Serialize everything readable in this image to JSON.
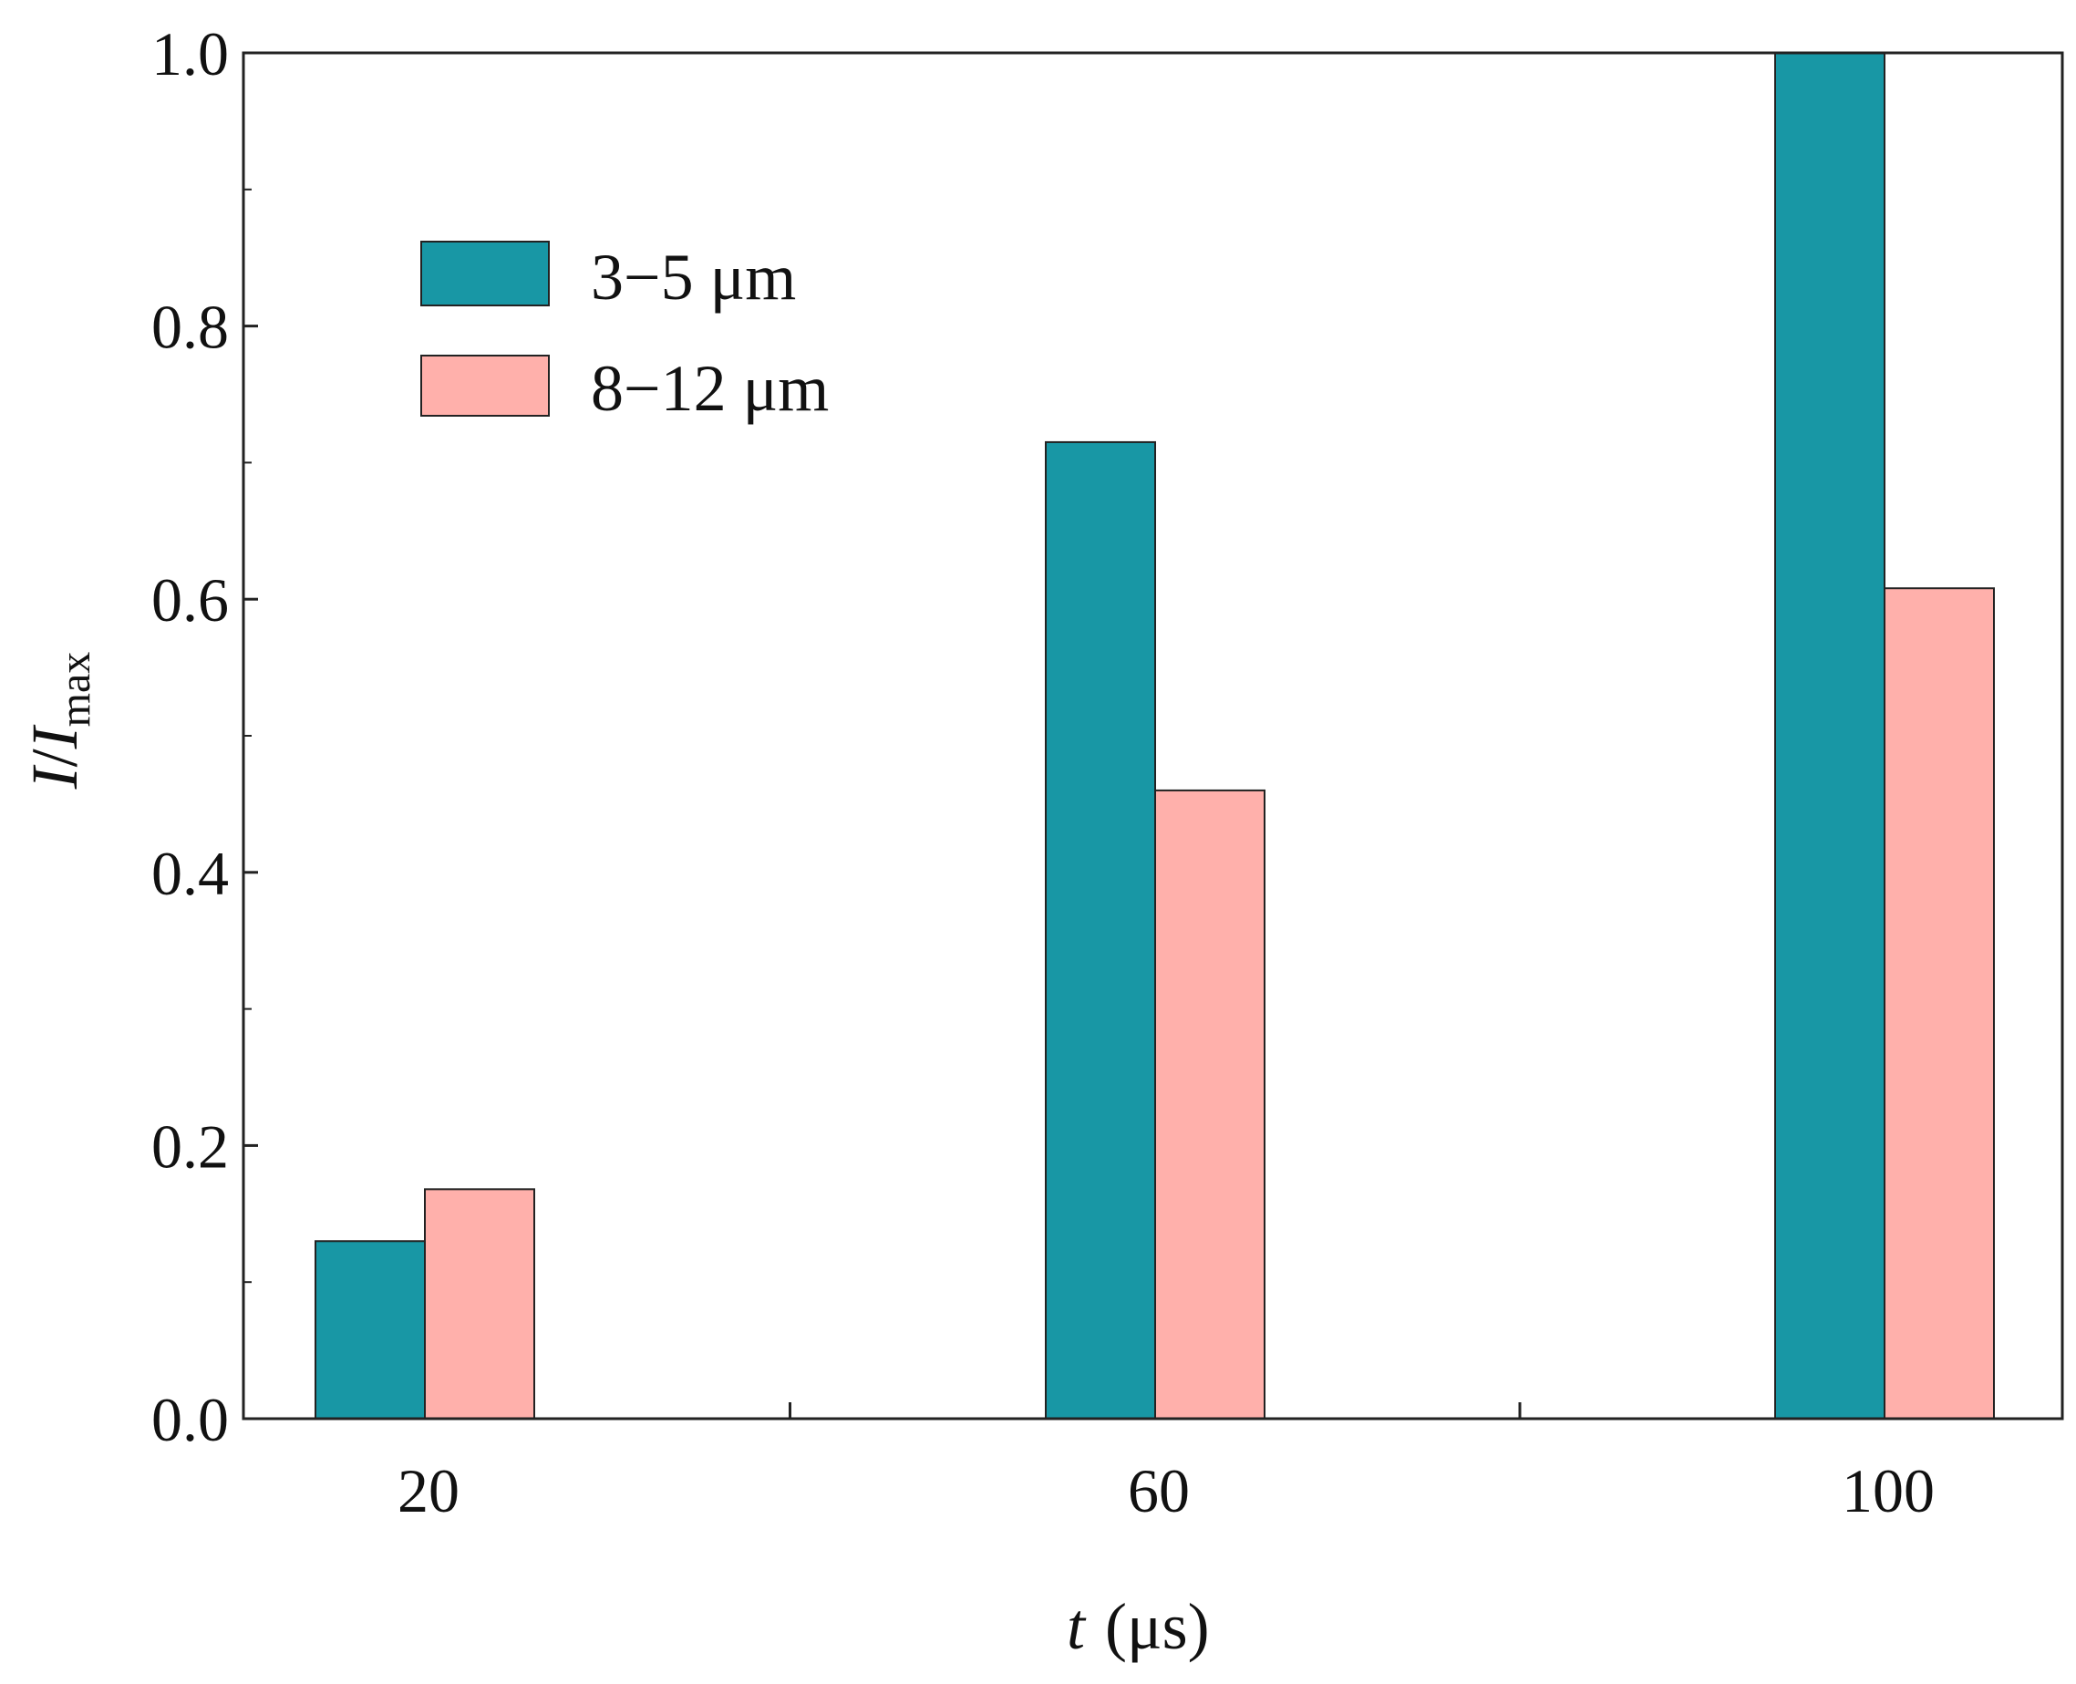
{
  "chart_data": {
    "type": "bar",
    "title": "",
    "categories": [
      "20",
      "60",
      "100"
    ],
    "series": [
      {
        "name": "3−5 μm",
        "color": "#1897a5",
        "values": [
          0.13,
          0.715,
          1.0
        ]
      },
      {
        "name": "8−12 μm",
        "color": "#ffb0ab",
        "values": [
          0.168,
          0.46,
          0.608
        ]
      }
    ],
    "xlabel": {
      "var": "t",
      "unit": "(μs)"
    },
    "ylabel": {
      "var": "I",
      "sep": "/",
      "var2": "I",
      "sub": "max"
    },
    "ylim": [
      0,
      1.0
    ],
    "yticks": [
      0.0,
      0.2,
      0.4,
      0.6,
      0.8,
      1.0
    ],
    "ytick_labels": [
      "0.0",
      "0.2",
      "0.4",
      "0.6",
      "0.8",
      "1.0"
    ],
    "grid": false,
    "legend_position": "top-left"
  }
}
